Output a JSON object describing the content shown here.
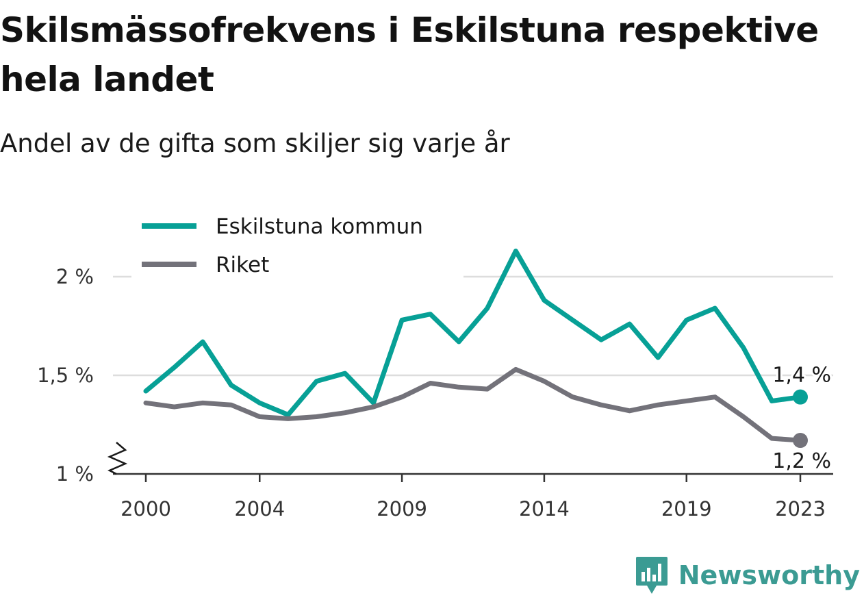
{
  "title": "Skilsmässofrekvens i Eskilstuna respektive hela landet",
  "subtitle": "Andel av de gifta som skiljer sig varje år",
  "brand": "Newsworthy",
  "colors": {
    "eskilstuna": "#07a096",
    "riket": "#73727a",
    "grid": "#dddddd",
    "axis": "#333333",
    "brand": "#3b9b93"
  },
  "chart_data": {
    "type": "line",
    "x": [
      2000,
      2001,
      2002,
      2003,
      2004,
      2005,
      2006,
      2007,
      2008,
      2009,
      2010,
      2011,
      2012,
      2013,
      2014,
      2015,
      2016,
      2017,
      2018,
      2019,
      2020,
      2021,
      2022,
      2023
    ],
    "x_ticks": [
      2000,
      2004,
      2009,
      2014,
      2019,
      2023
    ],
    "x_tick_labels": [
      "2000",
      "2004",
      "2009",
      "2014",
      "2019",
      "2023"
    ],
    "y_ticks": [
      1.0,
      1.5,
      2.0
    ],
    "y_tick_labels": [
      "1 %",
      "1,5 %",
      "2 %"
    ],
    "ylim": [
      1.0,
      2.2
    ],
    "y_axis_break": true,
    "grid": true,
    "legend_position": "top-left",
    "series": [
      {
        "name": "Eskilstuna kommun",
        "values": [
          1.42,
          1.54,
          1.67,
          1.45,
          1.36,
          1.3,
          1.47,
          1.51,
          1.36,
          1.78,
          1.81,
          1.67,
          1.84,
          2.13,
          1.88,
          1.78,
          1.68,
          1.76,
          1.59,
          1.78,
          1.84,
          1.64,
          1.37,
          1.39
        ],
        "end_label": "1,4 %"
      },
      {
        "name": "Riket",
        "values": [
          1.36,
          1.34,
          1.36,
          1.35,
          1.29,
          1.28,
          1.29,
          1.31,
          1.34,
          1.39,
          1.46,
          1.44,
          1.43,
          1.53,
          1.47,
          1.39,
          1.35,
          1.32,
          1.35,
          1.37,
          1.39,
          1.29,
          1.18,
          1.17
        ],
        "end_label": "1,2 %"
      }
    ]
  }
}
